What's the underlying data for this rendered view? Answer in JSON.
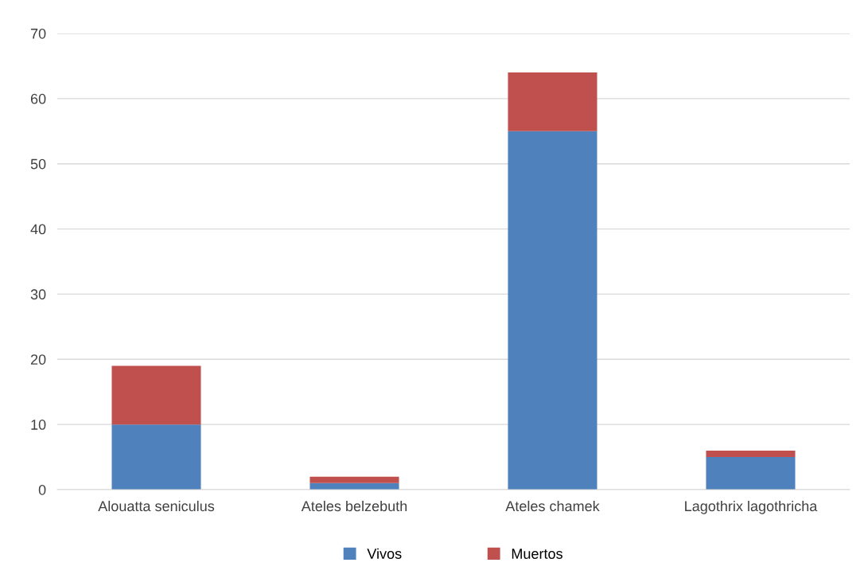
{
  "chart_data": {
    "type": "bar",
    "stacked": true,
    "categories": [
      "Alouatta seniculus",
      "Ateles belzebuth",
      "Ateles chamek",
      "Lagothrix lagothricha"
    ],
    "series": [
      {
        "name": "Vivos",
        "color": "#4f81bd",
        "values": [
          10,
          1,
          55,
          5
        ]
      },
      {
        "name": "Muertos",
        "color": "#c0504d",
        "values": [
          9,
          1,
          9,
          1
        ]
      }
    ],
    "ylim": [
      0,
      70
    ],
    "yticks": [
      0,
      10,
      20,
      30,
      40,
      50,
      60,
      70
    ],
    "grid": "y",
    "legend": "bottom"
  }
}
